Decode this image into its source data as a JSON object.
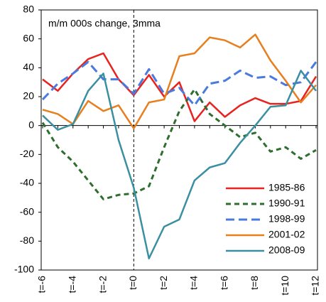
{
  "chart_data": {
    "type": "line",
    "annotation": "m/m 000s change, 3mma",
    "categories": [
      "t=-6",
      null,
      "t=-4",
      null,
      "t=-2",
      null,
      "t=0",
      null,
      "t=2",
      null,
      "t=4",
      null,
      "t=6",
      null,
      "t=8",
      null,
      "t=10",
      null,
      "t=12"
    ],
    "vline_at": "t=0",
    "ylim": [
      -100,
      80
    ],
    "yticks": [
      -100,
      -80,
      -60,
      -40,
      -20,
      0,
      20,
      40,
      60,
      80
    ],
    "legend": "lower right",
    "series": [
      {
        "name": "1985-86",
        "color": "#e8231f",
        "dashed": false,
        "values": [
          32,
          24,
          36,
          46,
          50,
          32,
          21,
          35,
          20,
          30,
          3,
          16,
          6,
          14,
          19,
          15,
          15,
          17,
          34
        ]
      },
      {
        "name": "1990-91",
        "color": "#2e6e2e",
        "dashed": true,
        "values": [
          2,
          -15,
          -25,
          -38,
          -51,
          -48,
          -47,
          -42,
          -15,
          10,
          25,
          8,
          0,
          -8,
          -5,
          -18,
          -15,
          -23,
          -17
        ]
      },
      {
        "name": "1998-99",
        "color": "#4a7ae0",
        "dashed": true,
        "values": [
          18,
          29,
          36,
          44,
          32,
          32,
          22,
          39,
          22,
          26,
          14,
          29,
          31,
          38,
          33,
          34,
          28,
          30,
          44
        ]
      },
      {
        "name": "2001-02",
        "color": "#e87f1f",
        "dashed": false,
        "values": [
          11,
          8,
          1,
          17,
          10,
          14,
          -2,
          16,
          18,
          48,
          50,
          61,
          59,
          54,
          63,
          45,
          31,
          16,
          28
        ]
      },
      {
        "name": "2008-09",
        "color": "#3a8fa0",
        "dashed": false,
        "values": [
          7,
          -3,
          1,
          24,
          36,
          -10,
          -43,
          -92,
          -70,
          -65,
          -38,
          -29,
          -26,
          -12,
          0,
          13,
          14,
          38,
          24
        ]
      }
    ]
  }
}
